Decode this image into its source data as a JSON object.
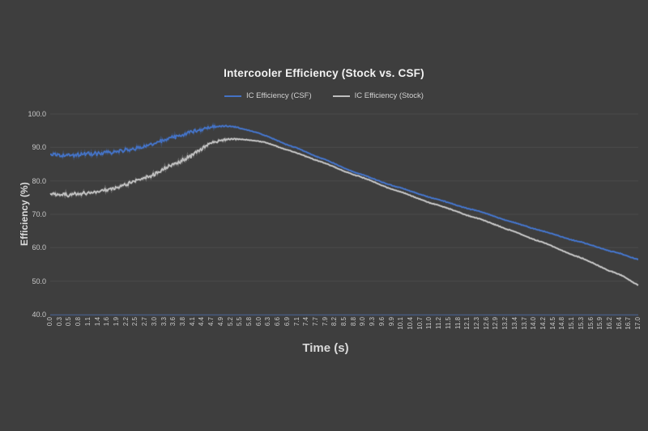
{
  "canvas": {
    "background": "#3e3e3e"
  },
  "chart_data": {
    "type": "line",
    "title": "Intercooler Efficiency (Stock vs. CSF)",
    "xlabel": "Time (s)",
    "ylabel": "Efficiency (%)",
    "xlim": [
      0,
      17
    ],
    "ylim": [
      40,
      100
    ],
    "grid": "horizontal",
    "legend_position": "top-center",
    "background": "#3e3e3e",
    "grid_color": "#4a4a4a",
    "axis_color": "#45597f",
    "text_color": "#c9c9c9",
    "title_color": "#f2f2f2",
    "y_tick_labels": [
      "100.0",
      "90.0",
      "80.0",
      "70.0",
      "60.0",
      "50.0",
      "40.0"
    ],
    "x_tick_labels": [
      "0.0",
      "0.3",
      "0.5",
      "0.8",
      "1.1",
      "1.4",
      "1.6",
      "1.9",
      "2.2",
      "2.5",
      "2.7",
      "3.0",
      "3.3",
      "3.6",
      "3.8",
      "4.1",
      "4.4",
      "4.7",
      "4.9",
      "5.2",
      "5.5",
      "5.8",
      "6.0",
      "6.3",
      "6.6",
      "6.9",
      "7.1",
      "7.4",
      "7.7",
      "7.9",
      "8.2",
      "8.5",
      "8.8",
      "9.0",
      "9.3",
      "9.6",
      "9.9",
      "10.1",
      "10.4",
      "10.7",
      "11.0",
      "11.2",
      "11.5",
      "11.8",
      "12.1",
      "12.3",
      "12.6",
      "12.9",
      "13.2",
      "13.4",
      "13.7",
      "14.0",
      "14.2",
      "14.5",
      "14.8",
      "15.1",
      "15.3",
      "15.6",
      "15.9",
      "16.2",
      "16.4",
      "16.7",
      "17.0"
    ],
    "noise": {
      "description": "high-frequency sensor noise visible for t < ~5.5 s",
      "amplitude_pct": 0.7
    },
    "series": [
      {
        "name": "IC Efficiency (CSF)",
        "color": "#4472c4",
        "values": [
          87.8,
          87.6,
          87.7,
          87.8,
          88.0,
          88.2,
          88.4,
          88.7,
          89.2,
          89.8,
          90.3,
          91.2,
          92.1,
          93.1,
          93.8,
          94.7,
          95.5,
          96.1,
          96.4,
          96.3,
          95.8,
          95.0,
          94.3,
          93.2,
          92.0,
          90.7,
          89.9,
          88.6,
          87.3,
          86.4,
          85.1,
          83.8,
          82.6,
          81.8,
          80.7,
          79.6,
          78.6,
          77.9,
          76.9,
          76.0,
          75.0,
          74.4,
          73.5,
          72.6,
          71.7,
          71.1,
          70.2,
          69.2,
          68.2,
          67.5,
          66.6,
          65.6,
          65.0,
          64.1,
          63.2,
          62.3,
          61.7,
          60.8,
          59.9,
          59.0,
          58.4,
          57.4,
          56.3
        ]
      },
      {
        "name": "IC Efficiency (Stock)",
        "color": "#bfbfbf",
        "values": [
          76.0,
          75.8,
          75.9,
          76.1,
          76.4,
          76.8,
          77.3,
          78.0,
          79.0,
          80.0,
          80.8,
          82.1,
          83.5,
          85.0,
          86.1,
          87.8,
          89.6,
          91.4,
          92.2,
          92.5,
          92.4,
          92.2,
          91.9,
          91.3,
          90.2,
          89.2,
          88.4,
          87.3,
          86.2,
          85.3,
          84.1,
          82.9,
          81.8,
          81.0,
          79.8,
          78.6,
          77.5,
          76.7,
          75.6,
          74.5,
          73.4,
          72.7,
          71.7,
          70.7,
          69.6,
          68.9,
          67.9,
          66.8,
          65.6,
          64.8,
          63.6,
          62.4,
          61.6,
          60.4,
          59.1,
          57.9,
          57.0,
          55.7,
          54.3,
          53.0,
          52.1,
          50.5,
          48.4
        ]
      }
    ]
  }
}
